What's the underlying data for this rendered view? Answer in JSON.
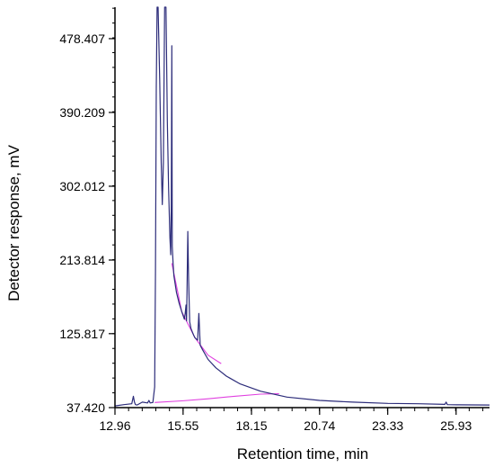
{
  "chart_data": {
    "type": "line",
    "xlabel": "Retention time, min",
    "ylabel": "Detector response, mV",
    "x_ticks": [
      12.96,
      15.55,
      18.15,
      20.74,
      23.33,
      25.93
    ],
    "x_tick_labels": [
      "12.96",
      "15.55",
      "18.15",
      "20.74",
      "23.33",
      "25.93"
    ],
    "y_ticks": [
      37.42,
      125.817,
      213.814,
      302.012,
      390.209,
      478.407
    ],
    "y_tick_labels": [
      "37.420",
      "125.817",
      "213.814",
      "302.012",
      "390.209",
      "478.407"
    ],
    "xlim": [
      12.96,
      27.2
    ],
    "ylim": [
      37.42,
      516
    ],
    "grid": false,
    "legend": "none",
    "series": [
      {
        "color": "#2c2c7a",
        "x": [
          12.96,
          13.3,
          13.6,
          13.66,
          13.7,
          13.74,
          13.8,
          14.0,
          14.2,
          14.25,
          14.3,
          14.4,
          14.47,
          14.5,
          14.53,
          14.56,
          14.6,
          14.66,
          14.72,
          14.76,
          14.8,
          14.85,
          14.9,
          14.95,
          15.0,
          15.05,
          15.08,
          15.1,
          15.12,
          15.14,
          15.17,
          15.2,
          15.3,
          15.4,
          15.5,
          15.6,
          15.63,
          15.66,
          15.68,
          15.7,
          15.73,
          15.76,
          15.8,
          15.85,
          15.9,
          15.95,
          16.0,
          16.1,
          16.15,
          16.2,
          16.3,
          16.5,
          16.8,
          17.2,
          17.7,
          18.5,
          19.5,
          20.74,
          22.0,
          23.33,
          24.5,
          25.5,
          25.55,
          25.6,
          26.0,
          27.2
        ],
        "y": [
          39.5,
          41,
          42,
          51,
          44,
          41,
          40.5,
          44,
          43,
          46,
          43,
          43.5,
          62,
          200,
          420,
          516,
          516,
          430,
          330,
          280,
          330,
          516,
          516,
          380,
          300,
          240,
          220,
          280,
          470,
          230,
          210,
          195,
          175,
          162,
          152,
          143,
          150,
          160,
          141,
          175,
          248,
          190,
          140,
          132,
          128,
          124,
          121,
          118,
          150,
          112,
          106,
          95,
          85,
          75,
          66,
          57,
          50,
          46,
          44,
          42.5,
          42,
          41.3,
          44,
          41,
          40.8,
          40.5
        ]
      },
      {
        "color": "#e040e0",
        "x": [
          14.47,
          15.5,
          16.5,
          17.5,
          18.5,
          19.2
        ],
        "y": [
          43.5,
          45.5,
          48,
          51,
          53.5,
          54
        ]
      },
      {
        "color": "#e040e0",
        "x": [
          15.12,
          15.5,
          16.0,
          16.5,
          17.0
        ],
        "y": [
          210,
          152,
          121,
          100,
          90
        ]
      }
    ]
  }
}
